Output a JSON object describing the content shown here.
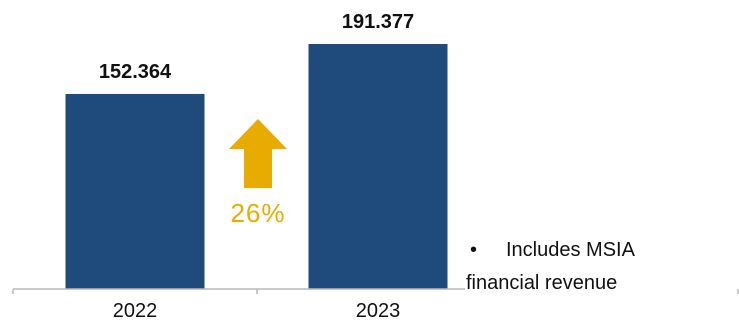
{
  "colors": {
    "bar": "#1f4a7c",
    "arrow": "#e8ac00",
    "axis": "#b8b8b8"
  },
  "chart_data": {
    "type": "bar",
    "categories": [
      "2022",
      "2023"
    ],
    "values": [
      152.364,
      191.377
    ],
    "value_labels": [
      "152.364",
      "191.377"
    ],
    "title": "",
    "xlabel": "",
    "ylabel": "",
    "ylim": [
      0,
      191.377
    ],
    "grid": false,
    "legend": "none",
    "annotations": {
      "growth_arrow_icon": "up-arrow-icon",
      "growth_label": "26%"
    }
  },
  "note": {
    "bullet": "•",
    "line1": "Includes MSIA",
    "line2": "financial revenue"
  }
}
